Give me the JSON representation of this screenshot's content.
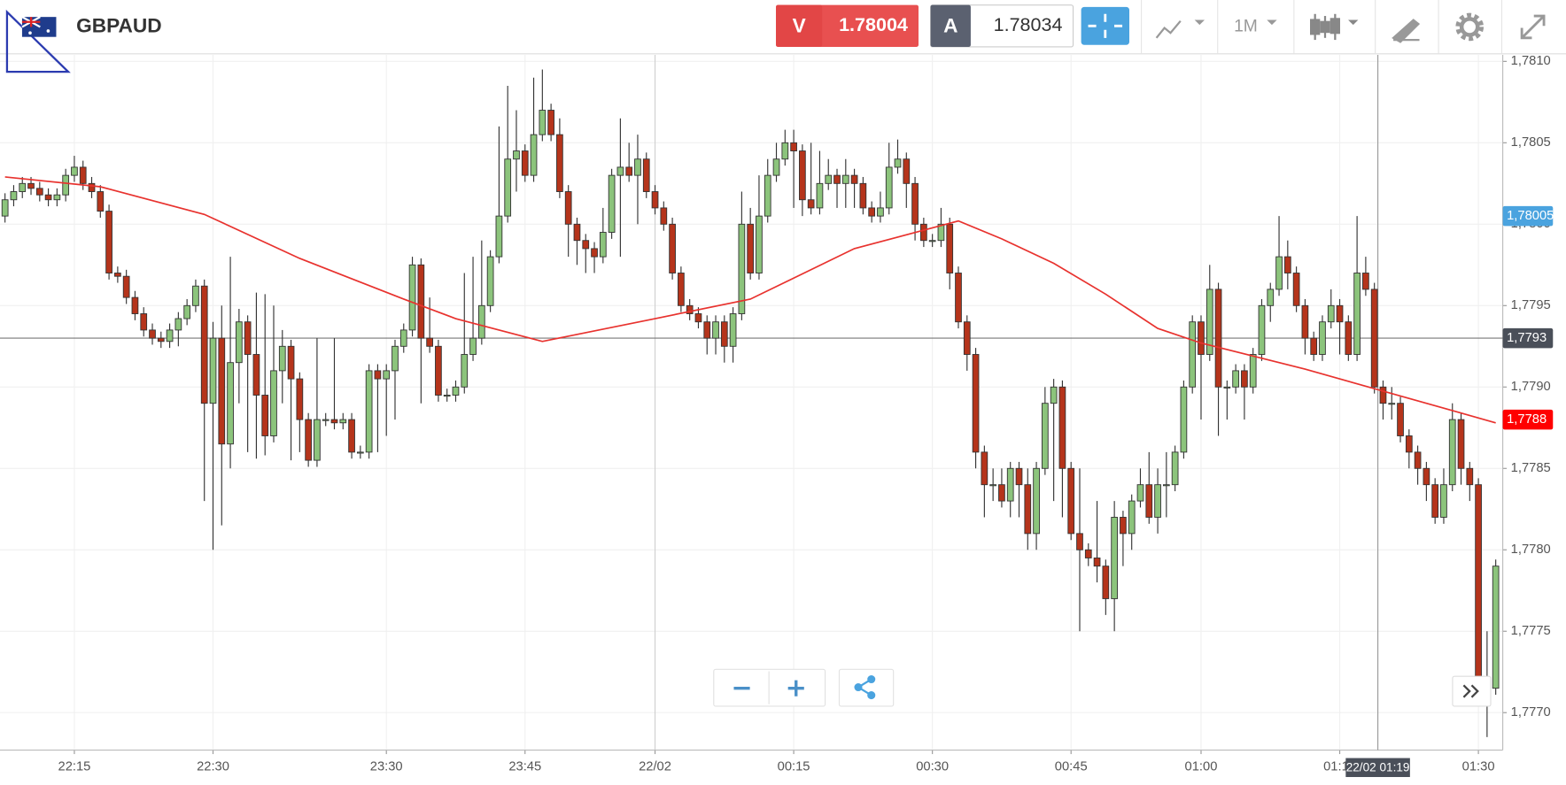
{
  "toolbar": {
    "symbol": "GBPAUD",
    "sell_label": "V",
    "sell_price": "1.78004",
    "buy_label": "A",
    "buy_price": "1.78034",
    "timeframe": "1M"
  },
  "chart_data": {
    "type": "candlestick",
    "up_color": "#8cc47c",
    "down_color": "#b5341b",
    "ylim": [
      1.77677,
      1.78104
    ],
    "yticks": [
      {
        "value": 1.781,
        "label": "1,7810"
      },
      {
        "value": 1.7805,
        "label": "1,7805"
      },
      {
        "value": 1.78,
        "label": "1,7800"
      },
      {
        "value": 1.7795,
        "label": "1,7795"
      },
      {
        "value": 1.779,
        "label": "1,7790"
      },
      {
        "value": 1.7785,
        "label": "1,7785"
      },
      {
        "value": 1.778,
        "label": "1,7780"
      },
      {
        "value": 1.7775,
        "label": "1,7775"
      },
      {
        "value": 1.777,
        "label": "1,7770"
      }
    ],
    "xticks": [
      {
        "value": 8,
        "label": "22:15"
      },
      {
        "value": 24,
        "label": "22:30"
      },
      {
        "value": 44,
        "label": "23:30"
      },
      {
        "value": 60,
        "label": "23:45"
      },
      {
        "value": 75,
        "label": "22/02"
      },
      {
        "value": 91,
        "label": "00:15"
      },
      {
        "value": 107,
        "label": "00:30"
      },
      {
        "value": 123,
        "label": "00:45"
      },
      {
        "value": 138,
        "label": "01:00"
      },
      {
        "value": 154,
        "label": "01:15"
      },
      {
        "value": 170,
        "label": "01:30"
      }
    ],
    "grid": true,
    "ohlc": [
      [
        1.78005,
        1.78019,
        1.78001,
        1.78015
      ],
      [
        1.78015,
        1.78024,
        1.78011,
        1.7802
      ],
      [
        1.7802,
        1.78029,
        1.78016,
        1.78025
      ],
      [
        1.78025,
        1.78029,
        1.78018,
        1.78022
      ],
      [
        1.78022,
        1.78026,
        1.78014,
        1.78018
      ],
      [
        1.78018,
        1.78022,
        1.78011,
        1.78015
      ],
      [
        1.78015,
        1.78022,
        1.78011,
        1.78018
      ],
      [
        1.78018,
        1.78034,
        1.78014,
        1.7803
      ],
      [
        1.7803,
        1.78042,
        1.78026,
        1.78035
      ],
      [
        1.78035,
        1.78039,
        1.78021,
        1.78025
      ],
      [
        1.78025,
        1.78029,
        1.78016,
        1.7802
      ],
      [
        1.7802,
        1.78024,
        1.78004,
        1.78008
      ],
      [
        1.78008,
        1.78012,
        1.77966,
        1.7797
      ],
      [
        1.7797,
        1.77974,
        1.77964,
        1.77968
      ],
      [
        1.77968,
        1.77972,
        1.77951,
        1.77955
      ],
      [
        1.77955,
        1.77959,
        1.77941,
        1.77945
      ],
      [
        1.77945,
        1.77949,
        1.77931,
        1.77935
      ],
      [
        1.77935,
        1.77939,
        1.77926,
        1.7793
      ],
      [
        1.7793,
        1.77934,
        1.77924,
        1.77928
      ],
      [
        1.77928,
        1.77939,
        1.77924,
        1.77935
      ],
      [
        1.77935,
        1.77946,
        1.77925,
        1.77942
      ],
      [
        1.77942,
        1.77954,
        1.77938,
        1.7795
      ],
      [
        1.7795,
        1.77966,
        1.77946,
        1.77962
      ],
      [
        1.77962,
        1.77966,
        1.7783,
        1.7789
      ],
      [
        1.7789,
        1.7794,
        1.778,
        1.7793
      ],
      [
        1.7793,
        1.7795,
        1.77815,
        1.77865
      ],
      [
        1.77865,
        1.7798,
        1.7785,
        1.77915
      ],
      [
        1.77915,
        1.77948,
        1.7789,
        1.7794
      ],
      [
        1.7794,
        1.77944,
        1.7786,
        1.7792
      ],
      [
        1.7792,
        1.77958,
        1.77856,
        1.77895
      ],
      [
        1.77895,
        1.77957,
        1.77858,
        1.7787
      ],
      [
        1.7787,
        1.7795,
        1.77866,
        1.7791
      ],
      [
        1.7791,
        1.77935,
        1.7789,
        1.77925
      ],
      [
        1.77925,
        1.77929,
        1.77855,
        1.77905
      ],
      [
        1.77905,
        1.77909,
        1.7786,
        1.7788
      ],
      [
        1.7788,
        1.77884,
        1.77851,
        1.77855
      ],
      [
        1.77855,
        1.7793,
        1.77851,
        1.7788
      ],
      [
        1.7788,
        1.77884,
        1.77876,
        1.7788
      ],
      [
        1.7788,
        1.7793,
        1.77874,
        1.77878
      ],
      [
        1.77878,
        1.77884,
        1.77874,
        1.7788
      ],
      [
        1.7788,
        1.77884,
        1.77856,
        1.7786
      ],
      [
        1.7786,
        1.77864,
        1.77856,
        1.7786
      ],
      [
        1.7786,
        1.77914,
        1.77856,
        1.7791
      ],
      [
        1.7791,
        1.77914,
        1.7786,
        1.77905
      ],
      [
        1.77905,
        1.77914,
        1.7787,
        1.7791
      ],
      [
        1.7791,
        1.77929,
        1.7788,
        1.77925
      ],
      [
        1.77925,
        1.77939,
        1.77921,
        1.77935
      ],
      [
        1.77935,
        1.7798,
        1.77931,
        1.77975
      ],
      [
        1.77975,
        1.77979,
        1.7789,
        1.7793
      ],
      [
        1.7793,
        1.77955,
        1.77921,
        1.77925
      ],
      [
        1.77925,
        1.77929,
        1.77891,
        1.77895
      ],
      [
        1.77895,
        1.77899,
        1.77891,
        1.77895
      ],
      [
        1.77895,
        1.77904,
        1.77891,
        1.779
      ],
      [
        1.779,
        1.7797,
        1.77896,
        1.7792
      ],
      [
        1.7792,
        1.7798,
        1.77916,
        1.7793
      ],
      [
        1.7793,
        1.7799,
        1.77926,
        1.7795
      ],
      [
        1.7795,
        1.77984,
        1.77946,
        1.7798
      ],
      [
        1.7798,
        1.7806,
        1.77976,
        1.78005
      ],
      [
        1.78005,
        1.78085,
        1.78001,
        1.7804
      ],
      [
        1.7804,
        1.7807,
        1.7802,
        1.78045
      ],
      [
        1.78045,
        1.78049,
        1.78026,
        1.7803
      ],
      [
        1.7803,
        1.7809,
        1.78026,
        1.78055
      ],
      [
        1.78055,
        1.78095,
        1.78051,
        1.7807
      ],
      [
        1.7807,
        1.78074,
        1.78051,
        1.78055
      ],
      [
        1.78055,
        1.78065,
        1.78016,
        1.7802
      ],
      [
        1.7802,
        1.78024,
        1.7798,
        1.78
      ],
      [
        1.78,
        1.78004,
        1.77975,
        1.7799
      ],
      [
        1.7799,
        1.77994,
        1.7797,
        1.77985
      ],
      [
        1.77985,
        1.77989,
        1.7797,
        1.7798
      ],
      [
        1.7798,
        1.7801,
        1.77976,
        1.77995
      ],
      [
        1.77995,
        1.78034,
        1.77991,
        1.7803
      ],
      [
        1.7803,
        1.78065,
        1.7798,
        1.78035
      ],
      [
        1.78035,
        1.7805,
        1.78026,
        1.7803
      ],
      [
        1.7803,
        1.78055,
        1.78,
        1.7804
      ],
      [
        1.7804,
        1.78044,
        1.78016,
        1.7802
      ],
      [
        1.7802,
        1.78024,
        1.78006,
        1.7801
      ],
      [
        1.7801,
        1.78014,
        1.77996,
        1.78
      ],
      [
        1.78,
        1.78004,
        1.77966,
        1.7797
      ],
      [
        1.7797,
        1.77974,
        1.77946,
        1.7795
      ],
      [
        1.7795,
        1.77954,
        1.77941,
        1.77945
      ],
      [
        1.77945,
        1.77949,
        1.77936,
        1.7794
      ],
      [
        1.7794,
        1.77944,
        1.7792,
        1.7793
      ],
      [
        1.7793,
        1.77944,
        1.7792,
        1.7794
      ],
      [
        1.7794,
        1.77944,
        1.77915,
        1.77925
      ],
      [
        1.77925,
        1.77949,
        1.77915,
        1.77945
      ],
      [
        1.77945,
        1.7802,
        1.77941,
        1.78
      ],
      [
        1.78,
        1.7801,
        1.77966,
        1.7797
      ],
      [
        1.7797,
        1.7803,
        1.77966,
        1.78005
      ],
      [
        1.78005,
        1.7804,
        1.78001,
        1.7803
      ],
      [
        1.7803,
        1.7805,
        1.78026,
        1.7804
      ],
      [
        1.7804,
        1.78058,
        1.78036,
        1.7805
      ],
      [
        1.7805,
        1.78058,
        1.7801,
        1.78045
      ],
      [
        1.78045,
        1.78049,
        1.78005,
        1.78015
      ],
      [
        1.78015,
        1.7805,
        1.78006,
        1.7801
      ],
      [
        1.7801,
        1.78045,
        1.78006,
        1.78025
      ],
      [
        1.78025,
        1.7804,
        1.78021,
        1.7803
      ],
      [
        1.7803,
        1.78034,
        1.7801,
        1.78025
      ],
      [
        1.78025,
        1.7804,
        1.7801,
        1.7803
      ],
      [
        1.7803,
        1.78034,
        1.7801,
        1.78025
      ],
      [
        1.78025,
        1.78029,
        1.78006,
        1.7801
      ],
      [
        1.7801,
        1.78014,
        1.78001,
        1.78005
      ],
      [
        1.78005,
        1.7802,
        1.78001,
        1.7801
      ],
      [
        1.7801,
        1.7805,
        1.78006,
        1.78035
      ],
      [
        1.78035,
        1.78052,
        1.78031,
        1.7804
      ],
      [
        1.7804,
        1.78044,
        1.7801,
        1.78025
      ],
      [
        1.78025,
        1.78029,
        1.7799,
        1.78
      ],
      [
        1.78,
        1.78004,
        1.77986,
        1.7799
      ],
      [
        1.7799,
        1.77994,
        1.77986,
        1.7799
      ],
      [
        1.7799,
        1.7801,
        1.77986,
        1.78
      ],
      [
        1.78,
        1.78004,
        1.7796,
        1.7797
      ],
      [
        1.7797,
        1.77974,
        1.77936,
        1.7794
      ],
      [
        1.7794,
        1.77944,
        1.7791,
        1.7792
      ],
      [
        1.7792,
        1.77924,
        1.7785,
        1.7786
      ],
      [
        1.7786,
        1.77864,
        1.7782,
        1.7784
      ],
      [
        1.7784,
        1.7785,
        1.7783,
        1.7784
      ],
      [
        1.7784,
        1.7785,
        1.77826,
        1.7783
      ],
      [
        1.7783,
        1.77854,
        1.7782,
        1.7785
      ],
      [
        1.7785,
        1.77854,
        1.7782,
        1.7784
      ],
      [
        1.7784,
        1.7785,
        1.778,
        1.7781
      ],
      [
        1.7781,
        1.77854,
        1.778,
        1.7785
      ],
      [
        1.7785,
        1.779,
        1.77846,
        1.7789
      ],
      [
        1.7789,
        1.77905,
        1.7783,
        1.779
      ],
      [
        1.779,
        1.77904,
        1.7782,
        1.7785
      ],
      [
        1.7785,
        1.77854,
        1.77806,
        1.7781
      ],
      [
        1.7781,
        1.7785,
        1.7775,
        1.778
      ],
      [
        1.778,
        1.77804,
        1.7779,
        1.77795
      ],
      [
        1.77795,
        1.7783,
        1.7778,
        1.7779
      ],
      [
        1.7779,
        1.77794,
        1.7776,
        1.7777
      ],
      [
        1.7777,
        1.7783,
        1.7775,
        1.7782
      ],
      [
        1.7782,
        1.77824,
        1.7779,
        1.7781
      ],
      [
        1.7781,
        1.77834,
        1.778,
        1.7783
      ],
      [
        1.7783,
        1.7785,
        1.77826,
        1.7784
      ],
      [
        1.7784,
        1.7786,
        1.77816,
        1.7782
      ],
      [
        1.7782,
        1.7785,
        1.7781,
        1.7784
      ],
      [
        1.7784,
        1.7786,
        1.7782,
        1.7784
      ],
      [
        1.7784,
        1.77864,
        1.77836,
        1.7786
      ],
      [
        1.7786,
        1.77904,
        1.77856,
        1.779
      ],
      [
        1.779,
        1.77944,
        1.77896,
        1.7794
      ],
      [
        1.7794,
        1.77944,
        1.7788,
        1.7792
      ],
      [
        1.7792,
        1.77975,
        1.77916,
        1.7796
      ],
      [
        1.7796,
        1.77964,
        1.7787,
        1.779
      ],
      [
        1.779,
        1.77904,
        1.7788,
        1.779
      ],
      [
        1.779,
        1.77914,
        1.77896,
        1.7791
      ],
      [
        1.7791,
        1.77914,
        1.7788,
        1.779
      ],
      [
        1.779,
        1.77924,
        1.77896,
        1.7792
      ],
      [
        1.7792,
        1.77954,
        1.77916,
        1.7795
      ],
      [
        1.7795,
        1.77964,
        1.7794,
        1.7796
      ],
      [
        1.7796,
        1.78005,
        1.77956,
        1.7798
      ],
      [
        1.7798,
        1.7799,
        1.7796,
        1.7797
      ],
      [
        1.7797,
        1.77974,
        1.77946,
        1.7795
      ],
      [
        1.7795,
        1.77954,
        1.7792,
        1.7793
      ],
      [
        1.7793,
        1.77934,
        1.77916,
        1.7792
      ],
      [
        1.7792,
        1.77944,
        1.77916,
        1.7794
      ],
      [
        1.7794,
        1.7796,
        1.77936,
        1.7795
      ],
      [
        1.7795,
        1.77954,
        1.7792,
        1.7794
      ],
      [
        1.7794,
        1.77944,
        1.77916,
        1.7792
      ],
      [
        1.7792,
        1.78005,
        1.77916,
        1.7797
      ],
      [
        1.7797,
        1.7798,
        1.77956,
        1.7796
      ],
      [
        1.7796,
        1.77964,
        1.77896,
        1.779
      ],
      [
        1.779,
        1.77904,
        1.7788,
        1.7789
      ],
      [
        1.7789,
        1.779,
        1.7788,
        1.7789
      ],
      [
        1.7789,
        1.77894,
        1.77866,
        1.7787
      ],
      [
        1.7787,
        1.77874,
        1.7785,
        1.7786
      ],
      [
        1.7786,
        1.77864,
        1.7784,
        1.7785
      ],
      [
        1.7785,
        1.77854,
        1.7783,
        1.7784
      ],
      [
        1.7784,
        1.77844,
        1.77816,
        1.7782
      ],
      [
        1.7782,
        1.7785,
        1.77816,
        1.7784
      ],
      [
        1.7784,
        1.7789,
        1.77836,
        1.7788
      ],
      [
        1.7788,
        1.77884,
        1.7784,
        1.7785
      ],
      [
        1.7785,
        1.77854,
        1.7783,
        1.7784
      ],
      [
        1.7784,
        1.77844,
        1.77716,
        1.7772
      ],
      [
        1.7772,
        1.7775,
        1.77685,
        1.77715
      ],
      [
        1.77715,
        1.77794,
        1.77711,
        1.7779
      ]
    ],
    "moving_average": {
      "color": "#e8322e",
      "x": [
        0,
        11,
        23,
        34,
        46,
        52,
        62,
        75,
        86,
        98,
        110,
        115,
        121,
        127,
        133,
        138,
        150,
        162,
        172
      ],
      "values": [
        1.78029,
        1.78023,
        1.78006,
        1.77979,
        1.77954,
        1.77942,
        1.77928,
        1.77942,
        1.77954,
        1.77985,
        1.78002,
        1.77991,
        1.77976,
        1.77957,
        1.77936,
        1.77927,
        1.77911,
        1.77893,
        1.77878
      ]
    },
    "price_markers": [
      {
        "value": 1.78005,
        "label": "1,78005",
        "color": "#4aa3df",
        "line": false
      },
      {
        "value": 1.7793,
        "label": "1,7793",
        "color": "#4a4f59",
        "line": true
      },
      {
        "value": 1.7788,
        "label": "1,7788",
        "color": "#ff0000",
        "line": false
      }
    ],
    "crosshair": {
      "x": 158.4,
      "label": "22/02 01:19"
    }
  }
}
